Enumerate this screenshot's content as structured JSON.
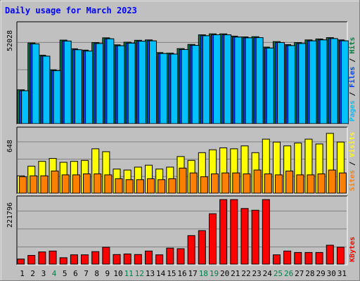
{
  "chart_data": {
    "type": "bar",
    "title": "Daily usage for March 2023",
    "categories": [
      "1",
      "2",
      "3",
      "4",
      "5",
      "6",
      "7",
      "8",
      "9",
      "10",
      "11",
      "12",
      "13",
      "14",
      "15",
      "16",
      "17",
      "18",
      "19",
      "20",
      "21",
      "22",
      "23",
      "24",
      "25",
      "26",
      "27",
      "28",
      "29",
      "30",
      "31"
    ],
    "weekend_days": [
      "4",
      "11",
      "12",
      "18",
      "19",
      "25",
      "26"
    ],
    "panels": [
      {
        "id": "hits",
        "ymax_label": "52028",
        "ylim": [
          0,
          52028
        ],
        "legend": [
          "Pages",
          "Files",
          "Hits"
        ],
        "legend_colors": [
          "#00c0ff",
          "#0040ff",
          "#008040"
        ],
        "series": [
          {
            "name": "Hits",
            "color": "#008040",
            "values": [
              17900,
              42700,
              36200,
              28500,
              44200,
              39600,
              38900,
              42900,
              45400,
              41700,
              43100,
              44100,
              44300,
              37600,
              37300,
              39700,
              41900,
              47000,
              47500,
              47500,
              46300,
              45900,
              46000,
              40500,
              43400,
              41800,
              42900,
              44300,
              44800,
              45500,
              44300
            ]
          },
          {
            "name": "Files",
            "color": "#0040ff",
            "values": [
              17400,
              42200,
              35700,
              28000,
              43700,
              39100,
              38400,
              42400,
              44900,
              41200,
              42600,
              43600,
              43800,
              37100,
              36800,
              39200,
              41400,
              46500,
              47000,
              47000,
              45800,
              45400,
              45500,
              40000,
              42900,
              41300,
              42400,
              43800,
              44300,
              45000,
              43800
            ]
          },
          {
            "name": "Pages",
            "color": "#00c0ff",
            "values": [
              17400,
              42200,
              35700,
              28000,
              43700,
              39100,
              38400,
              42400,
              44900,
              41200,
              42600,
              43600,
              43800,
              37100,
              36800,
              39200,
              41400,
              46500,
              47000,
              47000,
              45800,
              45400,
              45500,
              40000,
              42900,
              41300,
              42400,
              43800,
              44300,
              45000,
              43800
            ]
          }
        ]
      },
      {
        "id": "visits",
        "ymax_label": "648",
        "ylim": [
          0,
          648
        ],
        "legend": [
          "Sites",
          "/",
          "Visits"
        ],
        "legend_colors": [
          "#ff8000",
          "#000000",
          "#ffff00"
        ],
        "series": [
          {
            "name": "Visits",
            "color": "#ffff00",
            "values": [
              180,
              280,
              330,
              360,
              320,
              330,
              340,
              460,
              430,
              250,
              240,
              270,
              290,
              250,
              270,
              380,
              340,
              420,
              450,
              470,
              460,
              490,
              420,
              560,
              530,
              490,
              520,
              560,
              510,
              620,
              530
            ]
          },
          {
            "name": "Sites",
            "color": "#ff8000",
            "values": [
              170,
              180,
              180,
              230,
              190,
              190,
              200,
              200,
              190,
              150,
              140,
              140,
              150,
              140,
              150,
              260,
              210,
              170,
              200,
              210,
              210,
              200,
              240,
              200,
              190,
              230,
              190,
              190,
              200,
              240,
              210
            ]
          }
        ]
      },
      {
        "id": "kbytes",
        "ymax_label": "221796",
        "ylim": [
          0,
          221796
        ],
        "legend": [
          "KBytes"
        ],
        "legend_colors": [
          "#ff0000"
        ],
        "series": [
          {
            "name": "KBytes",
            "color": "#ff0000",
            "values": [
              17500,
              30000,
              42000,
              45000,
              22000,
              32000,
              32000,
              43000,
              58000,
              33000,
              35000,
              33000,
              45000,
              32000,
              55000,
              53000,
              98000,
              115000,
              173000,
              221500,
              221500,
              191000,
              185000,
              221500,
              32000,
              45000,
              40000,
              40000,
              40000,
              65000,
              58000
            ]
          }
        ]
      }
    ],
    "colors": {
      "title": "#0000ff",
      "label": "#000000",
      "weekend_label": "#00804b",
      "panel_fill": "#c0c0c0"
    }
  }
}
